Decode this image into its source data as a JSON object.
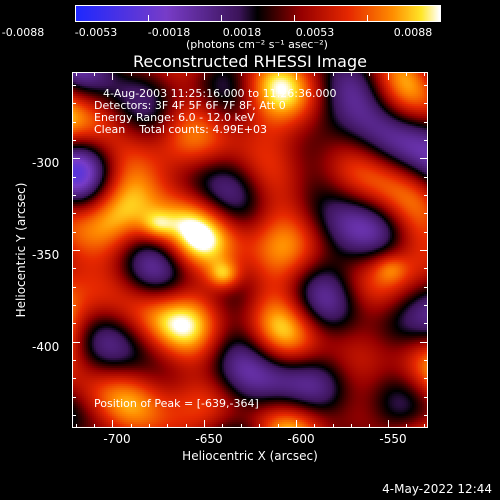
{
  "colorbar": {
    "ticks": [
      "-0.0088",
      "-0.0053",
      "-0.0018",
      "0.0018",
      "0.0053",
      "0.0088"
    ],
    "units": "(photons cm⁻² s⁻¹ asec⁻²)",
    "range": [
      -0.0088,
      0.0088
    ]
  },
  "image": {
    "title": "Reconstructed RHESSI Image",
    "info_lines": [
      "4-Aug-2003 11:25:16.000 to 11:26:36.000",
      "Detectors: 3F 4F 5F 6F 7F 8F, Att 0",
      "Energy Range: 6.0 - 12.0 keV",
      "Clean    Total counts: 4.99E+03"
    ],
    "peak_label": "Position of Peak = [-639,-364]",
    "xlabel": "Heliocentric X (arcsec)",
    "ylabel": "Heliocentric Y (arcsec)",
    "xticks": [
      "-700",
      "-650",
      "-600",
      "-550"
    ],
    "yticks": [
      "-300",
      "-350",
      "-400"
    ],
    "xlim": [
      -722,
      -528
    ],
    "ylim": [
      -447,
      -253
    ],
    "peak_position": [
      -639,
      -364
    ],
    "sources": [
      {
        "x": -639,
        "y": -364,
        "strength": 1.0
      },
      {
        "x": -676,
        "y": -337,
        "strength": 0.6
      },
      {
        "x": -548,
        "y": -360,
        "strength": 0.5
      }
    ]
  },
  "footer": {
    "date": "4-May-2022 12:44"
  }
}
